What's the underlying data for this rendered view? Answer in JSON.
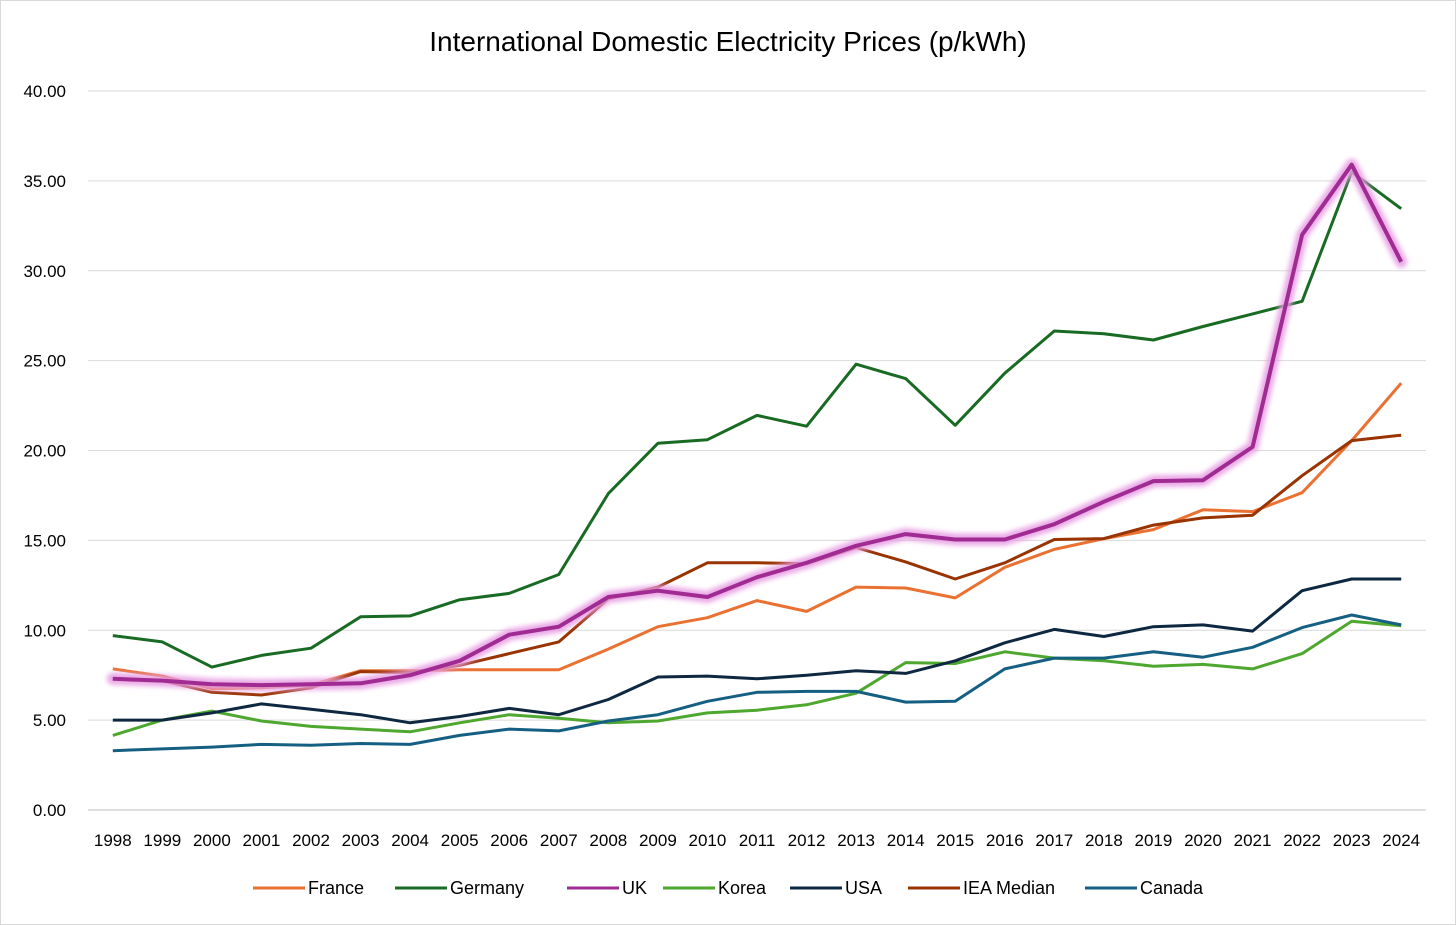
{
  "chart_data": {
    "type": "line",
    "title": "International Domestic Electricity Prices (p/kWh)",
    "xlabel": "",
    "ylabel": "",
    "ylim": [
      0,
      40
    ],
    "yticks": [
      "0.00",
      "5.00",
      "10.00",
      "15.00",
      "20.00",
      "25.00",
      "30.00",
      "35.00",
      "40.00"
    ],
    "grid": true,
    "legend_position": "bottom",
    "x": [
      "1998",
      "1999",
      "2000",
      "2001",
      "2002",
      "2003",
      "2004",
      "2005",
      "2006",
      "2007",
      "2008",
      "2009",
      "2010",
      "2011",
      "2012",
      "2013",
      "2014",
      "2015",
      "2016",
      "2017",
      "2018",
      "2019",
      "2020",
      "2021",
      "2022",
      "2023",
      "2024"
    ],
    "series": [
      {
        "name": "France",
        "color": "#E97132",
        "values": [
          7.85,
          7.45,
          6.75,
          6.8,
          6.95,
          7.75,
          7.75,
          7.8,
          7.8,
          7.8,
          8.95,
          10.2,
          10.7,
          11.65,
          11.05,
          12.4,
          12.35,
          11.8,
          13.5,
          14.5,
          15.1,
          15.6,
          16.7,
          16.6,
          17.65,
          20.55,
          23.75
        ]
      },
      {
        "name": "Germany",
        "color": "#196B24",
        "values": [
          9.7,
          9.35,
          7.95,
          8.6,
          9.0,
          10.75,
          10.8,
          11.7,
          12.05,
          13.1,
          17.6,
          20.4,
          20.6,
          21.95,
          21.35,
          24.8,
          24.0,
          21.4,
          24.3,
          26.65,
          26.5,
          26.15,
          26.9,
          27.6,
          28.3,
          35.5,
          33.45
        ]
      },
      {
        "name": "UK",
        "color": "#A02B93",
        "highlight": true,
        "values": [
          7.3,
          7.2,
          7.0,
          6.95,
          7.0,
          7.05,
          7.5,
          8.3,
          9.75,
          10.2,
          11.85,
          12.2,
          11.85,
          12.95,
          13.75,
          14.7,
          15.35,
          15.05,
          15.05,
          15.9,
          17.15,
          18.3,
          18.35,
          20.2,
          32.0,
          35.9,
          30.5
        ]
      },
      {
        "name": "Korea",
        "color": "#4EA72E",
        "values": [
          4.15,
          5.0,
          5.5,
          4.95,
          4.65,
          4.5,
          4.35,
          4.85,
          5.3,
          5.1,
          4.85,
          4.95,
          5.4,
          5.55,
          5.85,
          6.5,
          8.2,
          8.15,
          8.8,
          8.45,
          8.3,
          8.0,
          8.1,
          7.85,
          8.7,
          10.5,
          10.25
        ]
      },
      {
        "name": "USA",
        "color": "#0E2841",
        "values": [
          5.0,
          5.0,
          5.4,
          5.9,
          5.6,
          5.3,
          4.85,
          5.2,
          5.65,
          5.3,
          6.15,
          7.4,
          7.45,
          7.3,
          7.5,
          7.75,
          7.6,
          8.3,
          9.3,
          10.05,
          9.65,
          10.2,
          10.3,
          9.95,
          12.2,
          12.85,
          12.85
        ]
      },
      {
        "name": "IEA Median",
        "color": "#993300",
        "values": [
          7.3,
          7.2,
          6.55,
          6.4,
          6.8,
          7.7,
          7.65,
          8.05,
          8.7,
          9.35,
          11.75,
          12.4,
          13.75,
          13.75,
          13.7,
          14.6,
          13.8,
          12.85,
          13.75,
          15.05,
          15.1,
          15.85,
          16.25,
          16.4,
          18.6,
          20.55,
          20.85
        ]
      },
      {
        "name": "Canada",
        "color": "#156082",
        "values": [
          3.3,
          3.4,
          3.5,
          3.65,
          3.6,
          3.7,
          3.65,
          4.15,
          4.5,
          4.4,
          4.95,
          5.3,
          6.05,
          6.55,
          6.6,
          6.6,
          6.0,
          6.05,
          7.85,
          8.45,
          8.45,
          8.8,
          8.5,
          9.05,
          10.15,
          10.85,
          10.3
        ]
      }
    ]
  }
}
